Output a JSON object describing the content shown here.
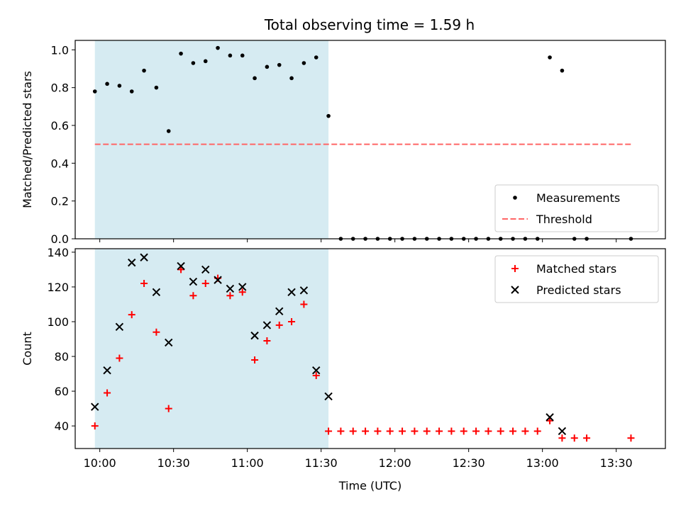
{
  "title": "Total observing time = 1.59 h",
  "colors": {
    "shade": "#add8e6",
    "threshold": "#ff6666",
    "measure": "#000000",
    "matched": "#ff0000",
    "predicted": "#000000"
  },
  "chart_data": [
    {
      "type": "scatter",
      "ylabel": "Matched/Predicted stars",
      "xlabel": "",
      "xlim": [
        "09:50",
        "13:50"
      ],
      "ylim": [
        0,
        1.05
      ],
      "yticks": [
        0.0,
        0.2,
        0.4,
        0.6,
        0.8,
        1.0
      ],
      "ytick_labels": [
        "0.0",
        "0.2",
        "0.4",
        "0.6",
        "0.8",
        "1.0"
      ],
      "shaded_span": [
        "09:58",
        "11:33"
      ],
      "legend": "lower-right",
      "series": [
        {
          "name": "Measurements",
          "marker": "dot",
          "x": [
            "09:58",
            "10:03",
            "10:08",
            "10:13",
            "10:18",
            "10:23",
            "10:28",
            "10:33",
            "10:38",
            "10:43",
            "10:48",
            "10:53",
            "10:58",
            "11:03",
            "11:08",
            "11:13",
            "11:18",
            "11:23",
            "11:28",
            "11:33",
            "11:38",
            "11:43",
            "11:48",
            "11:53",
            "11:58",
            "12:03",
            "12:08",
            "12:13",
            "12:18",
            "12:23",
            "12:28",
            "12:33",
            "12:38",
            "12:43",
            "12:48",
            "12:53",
            "12:58",
            "13:03",
            "13:08",
            "13:13",
            "13:18",
            "13:36"
          ],
          "y": [
            0.78,
            0.82,
            0.81,
            0.78,
            0.89,
            0.8,
            0.57,
            0.98,
            0.93,
            0.94,
            1.01,
            0.97,
            0.97,
            0.85,
            0.91,
            0.92,
            0.85,
            0.93,
            0.96,
            0.65,
            0,
            0,
            0,
            0,
            0,
            0,
            0,
            0,
            0,
            0,
            0,
            0,
            0,
            0,
            0,
            0,
            0,
            0.96,
            0.89,
            0,
            0,
            0
          ]
        },
        {
          "name": "Threshold",
          "line": "dashed",
          "x": [
            "09:58",
            "13:36"
          ],
          "y": [
            0.5,
            0.5
          ]
        }
      ]
    },
    {
      "type": "scatter",
      "ylabel": "Count",
      "xlabel": "Time (UTC)",
      "xlim": [
        "09:50",
        "13:50"
      ],
      "ylim": [
        27,
        142
      ],
      "yticks": [
        40,
        60,
        80,
        100,
        120,
        140
      ],
      "ytick_labels": [
        "40",
        "60",
        "80",
        "100",
        "120",
        "140"
      ],
      "xticks": [
        "10:00",
        "10:30",
        "11:00",
        "11:30",
        "12:00",
        "12:30",
        "13:00",
        "13:30"
      ],
      "xtick_labels": [
        "10:00",
        "10:30",
        "11:00",
        "11:30",
        "12:00",
        "12:30",
        "13:00",
        "13:30"
      ],
      "shaded_span": [
        "09:58",
        "11:33"
      ],
      "legend": "upper-right",
      "series": [
        {
          "name": "Matched stars",
          "marker": "plus",
          "x": [
            "09:58",
            "10:03",
            "10:08",
            "10:13",
            "10:18",
            "10:23",
            "10:28",
            "10:33",
            "10:38",
            "10:43",
            "10:48",
            "10:53",
            "10:58",
            "11:03",
            "11:08",
            "11:13",
            "11:18",
            "11:23",
            "11:28",
            "11:33",
            "11:38",
            "11:43",
            "11:48",
            "11:53",
            "11:58",
            "12:03",
            "12:08",
            "12:13",
            "12:18",
            "12:23",
            "12:28",
            "12:33",
            "12:38",
            "12:43",
            "12:48",
            "12:53",
            "12:58",
            "13:03",
            "13:08",
            "13:13",
            "13:18",
            "13:36"
          ],
          "y": [
            40,
            59,
            79,
            104,
            122,
            94,
            50,
            130,
            115,
            122,
            125,
            115,
            117,
            78,
            89,
            98,
            100,
            110,
            69,
            37,
            37,
            37,
            37,
            37,
            37,
            37,
            37,
            37,
            37,
            37,
            37,
            37,
            37,
            37,
            37,
            37,
            37,
            43,
            33,
            33,
            33,
            33
          ]
        },
        {
          "name": "Predicted stars",
          "marker": "x",
          "x": [
            "09:58",
            "10:03",
            "10:08",
            "10:13",
            "10:18",
            "10:23",
            "10:28",
            "10:33",
            "10:38",
            "10:43",
            "10:48",
            "10:53",
            "10:58",
            "11:03",
            "11:08",
            "11:13",
            "11:18",
            "11:23",
            "11:28",
            "11:33",
            "13:03",
            "13:08"
          ],
          "y": [
            51,
            72,
            97,
            134,
            137,
            117,
            88,
            132,
            123,
            130,
            124,
            119,
            120,
            92,
            98,
            106,
            117,
            118,
            72,
            57,
            45,
            37
          ]
        }
      ]
    }
  ]
}
